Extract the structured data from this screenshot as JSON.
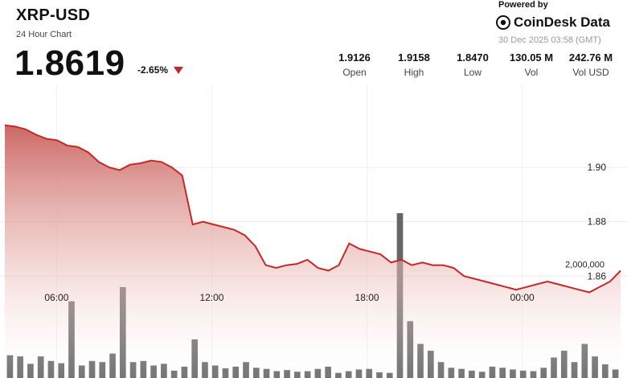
{
  "header": {
    "symbol": "XRP-USD",
    "subtitle": "24 Hour Chart",
    "price": "1.8619",
    "change": "-2.65%",
    "powered_by": "Powered by",
    "brand": "CoinDesk Data",
    "timestamp": "30 Dec 2025 03:58 (GMT)"
  },
  "stats": [
    {
      "value": "1.9126",
      "label": "Open"
    },
    {
      "value": "1.9158",
      "label": "High"
    },
    {
      "value": "1.8470",
      "label": "Low"
    },
    {
      "value": "130.05 M",
      "label": "Vol"
    },
    {
      "value": "242.76 M",
      "label": "Vol USD"
    }
  ],
  "colors": {
    "line": "#c62828",
    "fill_top": "#c9605c",
    "fill_bottom": "#ffffff",
    "bar": "#666666",
    "arrow": "#c62828"
  },
  "chart_data": {
    "type": "area",
    "title": "XRP-USD",
    "subtitle": "24 Hour Chart",
    "grid": true,
    "y_ticks": [
      1.86,
      1.88,
      1.9
    ],
    "y_tick_labels": [
      "1.86",
      "1.88",
      "1.90"
    ],
    "ylim": [
      1.8225,
      1.9305
    ],
    "x_tick_labels": [
      "06:00",
      "12:00",
      "18:00",
      "00:00"
    ],
    "x_tick_hours": [
      2,
      8,
      14,
      20
    ],
    "x_range_hours": [
      0,
      23.8
    ],
    "price": [
      1.9155,
      1.915,
      1.914,
      1.912,
      1.9105,
      1.91,
      1.908,
      1.9075,
      1.9055,
      1.902,
      1.9,
      1.899,
      1.901,
      1.9015,
      1.9025,
      1.902,
      1.9,
      1.897,
      1.879,
      1.88,
      1.879,
      1.878,
      1.877,
      1.875,
      1.871,
      1.864,
      1.863,
      1.864,
      1.8645,
      1.866,
      1.863,
      1.862,
      1.864,
      1.872,
      1.87,
      1.869,
      1.868,
      1.865,
      1.866,
      1.864,
      1.865,
      1.864,
      1.864,
      1.863,
      1.86,
      1.859,
      1.858,
      1.857,
      1.856,
      1.855,
      1.856,
      1.857,
      1.858,
      1.857,
      1.856,
      1.855,
      1.854,
      1.856,
      1.858,
      1.862
    ],
    "volume_axis_label": "2,000,000",
    "volume_axis_value": 2000000,
    "volume_max": 3000000,
    "volume": [
      400000,
      380000,
      250000,
      380000,
      300000,
      260000,
      1350000,
      220000,
      300000,
      280000,
      430000,
      1600000,
      280000,
      300000,
      220000,
      250000,
      130000,
      200000,
      680000,
      280000,
      220000,
      170000,
      200000,
      280000,
      180000,
      160000,
      120000,
      140000,
      110000,
      120000,
      160000,
      200000,
      90000,
      120000,
      150000,
      160000,
      100000,
      90000,
      2900000,
      1000000,
      600000,
      480000,
      280000,
      180000,
      160000,
      130000,
      110000,
      200000,
      180000,
      150000,
      130000,
      120000,
      180000,
      360000,
      480000,
      280000,
      600000,
      380000,
      240000,
      150000
    ]
  }
}
